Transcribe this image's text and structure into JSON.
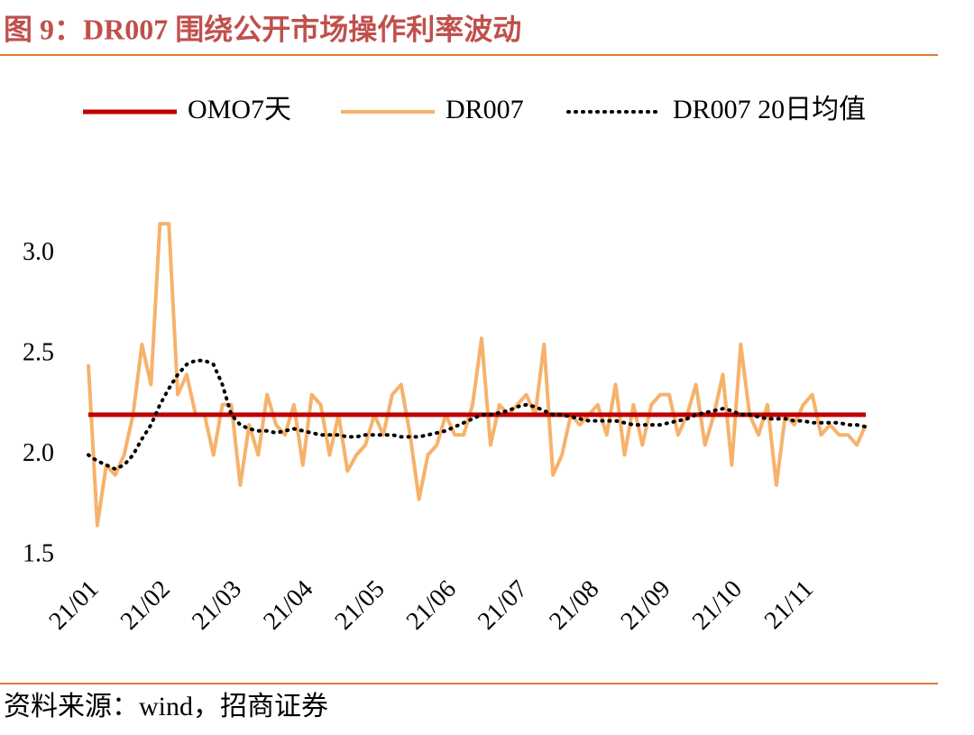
{
  "chart_data": {
    "type": "line",
    "title": "图 9：DR007 围绕公开市场操作利率波动",
    "source": "资料来源：wind，招商证券",
    "categories": [
      "21/01",
      null,
      null,
      null,
      null,
      null,
      null,
      null,
      "21/02",
      null,
      null,
      null,
      null,
      null,
      null,
      null,
      "21/03",
      null,
      null,
      null,
      null,
      null,
      null,
      null,
      "21/04",
      null,
      null,
      null,
      null,
      null,
      null,
      null,
      "21/05",
      null,
      null,
      null,
      null,
      null,
      null,
      null,
      "21/06",
      null,
      null,
      null,
      null,
      null,
      null,
      null,
      "21/07",
      null,
      null,
      null,
      null,
      null,
      null,
      null,
      "21/08",
      null,
      null,
      null,
      null,
      null,
      null,
      null,
      "21/09",
      null,
      null,
      null,
      null,
      null,
      null,
      null,
      "21/10",
      null,
      null,
      null,
      null,
      null,
      null,
      null,
      "21/11",
      null,
      null,
      null,
      null,
      null,
      null,
      null
    ],
    "series": [
      {
        "name": "OMO7天",
        "color": "#c00000",
        "style": "solid",
        "values": [
          2.2,
          2.2,
          2.2,
          2.2,
          2.2,
          2.2,
          2.2,
          2.2,
          2.2,
          2.2,
          2.2,
          2.2,
          2.2,
          2.2,
          2.2,
          2.2,
          2.2,
          2.2,
          2.2,
          2.2,
          2.2,
          2.2,
          2.2,
          2.2,
          2.2,
          2.2,
          2.2,
          2.2,
          2.2,
          2.2,
          2.2,
          2.2,
          2.2,
          2.2,
          2.2,
          2.2,
          2.2,
          2.2,
          2.2,
          2.2,
          2.2,
          2.2,
          2.2,
          2.2,
          2.2,
          2.2,
          2.2,
          2.2,
          2.2,
          2.2,
          2.2,
          2.2,
          2.2,
          2.2,
          2.2,
          2.2,
          2.2,
          2.2,
          2.2,
          2.2,
          2.2,
          2.2,
          2.2,
          2.2,
          2.2,
          2.2,
          2.2,
          2.2,
          2.2,
          2.2,
          2.2,
          2.2,
          2.2,
          2.2,
          2.2,
          2.2,
          2.2,
          2.2,
          2.2,
          2.2,
          2.2,
          2.2,
          2.2,
          2.2,
          2.2,
          2.2,
          2.2,
          2.2
        ]
      },
      {
        "name": "DR007",
        "color": "#f6b26b",
        "style": "solid",
        "values": [
          2.45,
          1.65,
          1.95,
          1.9,
          2.0,
          2.2,
          2.55,
          2.35,
          3.15,
          3.15,
          2.3,
          2.4,
          2.2,
          2.2,
          2.0,
          2.25,
          2.25,
          1.85,
          2.15,
          2.0,
          2.3,
          2.15,
          2.1,
          2.25,
          1.95,
          2.3,
          2.25,
          2.0,
          2.2,
          1.92,
          2.0,
          2.05,
          2.2,
          2.1,
          2.3,
          2.35,
          2.1,
          1.78,
          2.0,
          2.05,
          2.2,
          2.1,
          2.1,
          2.25,
          2.58,
          2.05,
          2.25,
          2.2,
          2.25,
          2.3,
          2.2,
          2.55,
          1.9,
          2.0,
          2.2,
          2.15,
          2.2,
          2.25,
          2.1,
          2.35,
          2.0,
          2.25,
          2.05,
          2.25,
          2.3,
          2.3,
          2.1,
          2.2,
          2.35,
          2.05,
          2.2,
          2.4,
          1.95,
          2.55,
          2.2,
          2.1,
          2.25,
          1.85,
          2.2,
          2.15,
          2.25,
          2.3,
          2.1,
          2.15,
          2.1,
          2.1,
          2.05,
          2.15
        ]
      },
      {
        "name": "DR007 20日均值",
        "color": "#000000",
        "style": "dotted",
        "values": [
          2.0,
          1.97,
          1.95,
          1.93,
          1.95,
          2.0,
          2.08,
          2.15,
          2.25,
          2.33,
          2.4,
          2.45,
          2.47,
          2.47,
          2.45,
          2.35,
          2.2,
          2.15,
          2.13,
          2.12,
          2.12,
          2.11,
          2.12,
          2.13,
          2.12,
          2.11,
          2.1,
          2.1,
          2.1,
          2.09,
          2.09,
          2.1,
          2.1,
          2.1,
          2.1,
          2.09,
          2.09,
          2.09,
          2.1,
          2.11,
          2.12,
          2.14,
          2.16,
          2.18,
          2.2,
          2.2,
          2.21,
          2.22,
          2.24,
          2.25,
          2.24,
          2.22,
          2.2,
          2.2,
          2.19,
          2.18,
          2.17,
          2.17,
          2.17,
          2.17,
          2.16,
          2.15,
          2.15,
          2.15,
          2.15,
          2.16,
          2.17,
          2.18,
          2.2,
          2.21,
          2.22,
          2.23,
          2.22,
          2.2,
          2.2,
          2.19,
          2.18,
          2.18,
          2.18,
          2.17,
          2.17,
          2.16,
          2.16,
          2.16,
          2.16,
          2.15,
          2.15,
          2.14
        ]
      }
    ],
    "ylim": [
      1.5,
      3.2
    ],
    "yticks": [
      1.5,
      {
        "value": 2,
        "label": "2.0"
      },
      2.5,
      {
        "value": 3,
        "label": "3.0"
      }
    ]
  }
}
